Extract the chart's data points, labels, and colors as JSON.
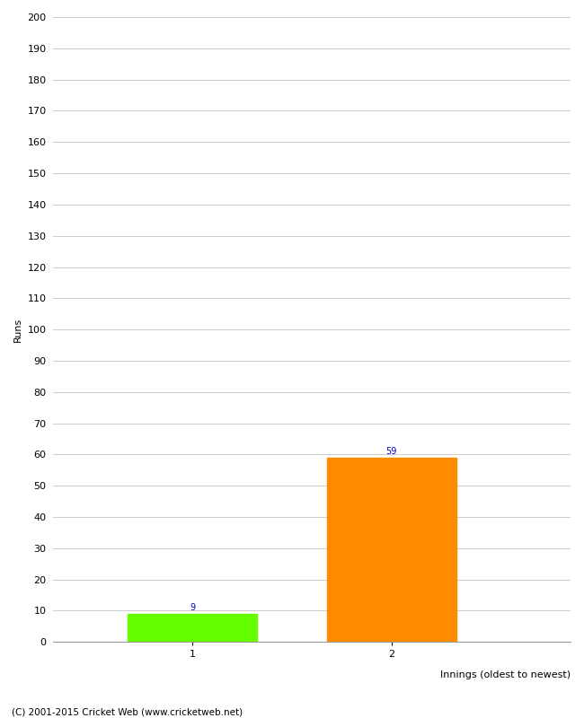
{
  "categories": [
    "1",
    "2"
  ],
  "values": [
    9,
    59
  ],
  "bar_colors": [
    "#66ff00",
    "#ff8c00"
  ],
  "xlabel": "Innings (oldest to newest)",
  "ylabel": "Runs",
  "ylim": [
    0,
    200
  ],
  "yticks": [
    0,
    10,
    20,
    30,
    40,
    50,
    60,
    70,
    80,
    90,
    100,
    110,
    120,
    130,
    140,
    150,
    160,
    170,
    180,
    190,
    200
  ],
  "annotation_color": "#0000cc",
  "annotation_fontsize": 7,
  "footer": "(C) 2001-2015 Cricket Web (www.cricketweb.net)",
  "background_color": "#ffffff",
  "grid_color": "#cccccc",
  "bar_width": 0.65,
  "x_positions": [
    1,
    2
  ],
  "xlim": [
    0.3,
    2.9
  ]
}
